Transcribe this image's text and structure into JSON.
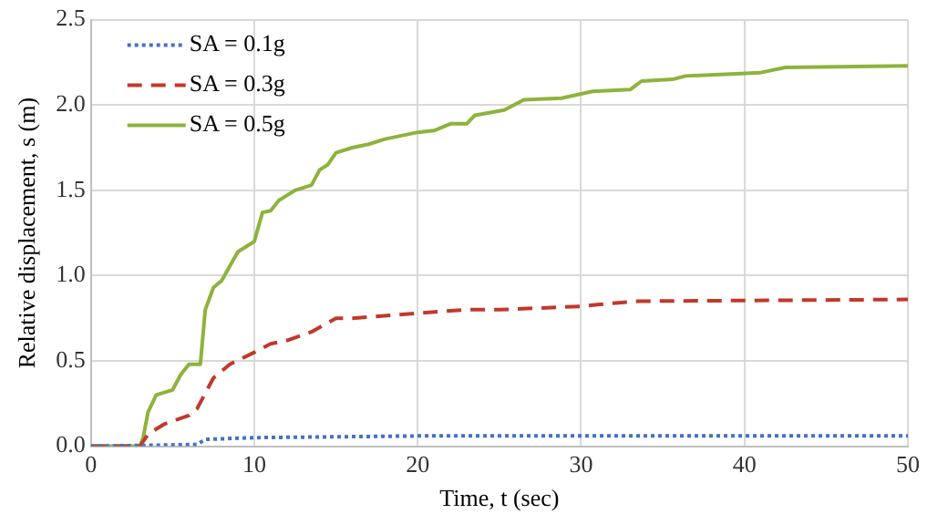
{
  "chart_data": {
    "type": "line",
    "xlabel": "Time, t (sec)",
    "ylabel": "Relative displacement, s (m)",
    "xlim": [
      0,
      50
    ],
    "xticks": [
      0,
      10,
      20,
      30,
      40,
      50
    ],
    "ylim": [
      0,
      2.5
    ],
    "yticks": [
      {
        "value": 0,
        "label": "0.0"
      },
      0.5,
      {
        "value": 1,
        "label": "1.0"
      },
      1.5,
      {
        "value": 2,
        "label": "2.0"
      },
      2.5
    ],
    "grid": true,
    "legend": "top left",
    "marker": "none",
    "series": [
      {
        "name": "SA = 0.1g",
        "color": "#4472c4",
        "line_style": "dotted",
        "x": [
          0,
          6.5,
          7,
          10,
          20,
          50
        ],
        "values": [
          0,
          0.01,
          0.04,
          0.05,
          0.06,
          0.06
        ]
      },
      {
        "name": "SA = 0.3g",
        "color": "#c0392b",
        "line_style": "dashed",
        "x": [
          0,
          3,
          3.5,
          4.5,
          6,
          6.5,
          7.5,
          8.5,
          10,
          11,
          12,
          13.5,
          15,
          16,
          20,
          23,
          25,
          30,
          31,
          33.5,
          50
        ],
        "values": [
          0,
          0,
          0.07,
          0.13,
          0.18,
          0.22,
          0.4,
          0.48,
          0.55,
          0.6,
          0.62,
          0.67,
          0.75,
          0.75,
          0.78,
          0.8,
          0.8,
          0.82,
          0.83,
          0.85,
          0.86
        ]
      },
      {
        "name": "SA = 0.5g",
        "color": "#8db33c",
        "line_style": "solid",
        "x": [
          0,
          3,
          3.2,
          3.5,
          4,
          5,
          5.5,
          6,
          6.7,
          7,
          7.5,
          8,
          9,
          10,
          10.5,
          11,
          11.5,
          12,
          12.5,
          13.5,
          14,
          14.5,
          15,
          16,
          17,
          18,
          20,
          21,
          22,
          23,
          23.5,
          25.3,
          26.5,
          28.8,
          30.7,
          33,
          33.7,
          35.6,
          36.4,
          41,
          42.5,
          50
        ],
        "values": [
          0,
          0,
          0.05,
          0.2,
          0.3,
          0.33,
          0.42,
          0.48,
          0.48,
          0.8,
          0.93,
          0.97,
          1.14,
          1.2,
          1.37,
          1.38,
          1.44,
          1.47,
          1.5,
          1.53,
          1.62,
          1.65,
          1.72,
          1.75,
          1.77,
          1.8,
          1.84,
          1.85,
          1.89,
          1.89,
          1.94,
          1.97,
          2.03,
          2.04,
          2.08,
          2.09,
          2.14,
          2.15,
          2.17,
          2.19,
          2.22,
          2.23
        ]
      }
    ]
  }
}
